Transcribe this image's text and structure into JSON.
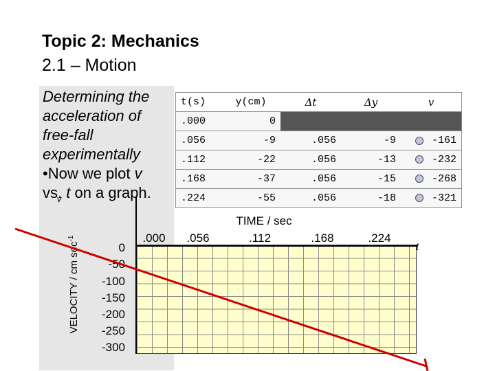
{
  "slide": {
    "title": "Topic 2: Mechanics",
    "subtitle": "2.1 – Motion"
  },
  "description": {
    "line1": "Determining the",
    "line2": "acceleration of",
    "line3": "free-fall",
    "line4": "experimentally",
    "bullet_prefix": "•Now we plot ",
    "bullet_var": "v",
    "line6_prefix": "vs. ",
    "line6_var": "t",
    "line6_suffix": " on a  graph.",
    "overlap_v": "v"
  },
  "table": {
    "headers": [
      "t(s)",
      "y(cm)",
      "Δt",
      "Δy",
      "v"
    ],
    "rows": [
      [
        ".000",
        "0",
        "",
        "",
        ""
      ],
      [
        ".056",
        "-9",
        ".056",
        "-9",
        "-161"
      ],
      [
        ".112",
        "-22",
        ".056",
        "-13",
        "-232"
      ],
      [
        ".168",
        "-37",
        ".056",
        "-15",
        "-268"
      ],
      [
        ".224",
        "-55",
        ".056",
        "-18",
        "-321"
      ]
    ]
  },
  "graph": {
    "y_axis_title_main": "VELOCITY / cm sec",
    "y_axis_title_sup": "-1",
    "x_axis_title": "TIME / sec",
    "t_label": "t",
    "y_ticks": [
      "0",
      "-50",
      "-100",
      "-150",
      "-200",
      "-250",
      "-300"
    ],
    "x_ticks": [
      ".000",
      ".056",
      ".112",
      ".168",
      ".224"
    ],
    "line_color": "#cc0000",
    "grid_bg": "#fffecc"
  }
}
